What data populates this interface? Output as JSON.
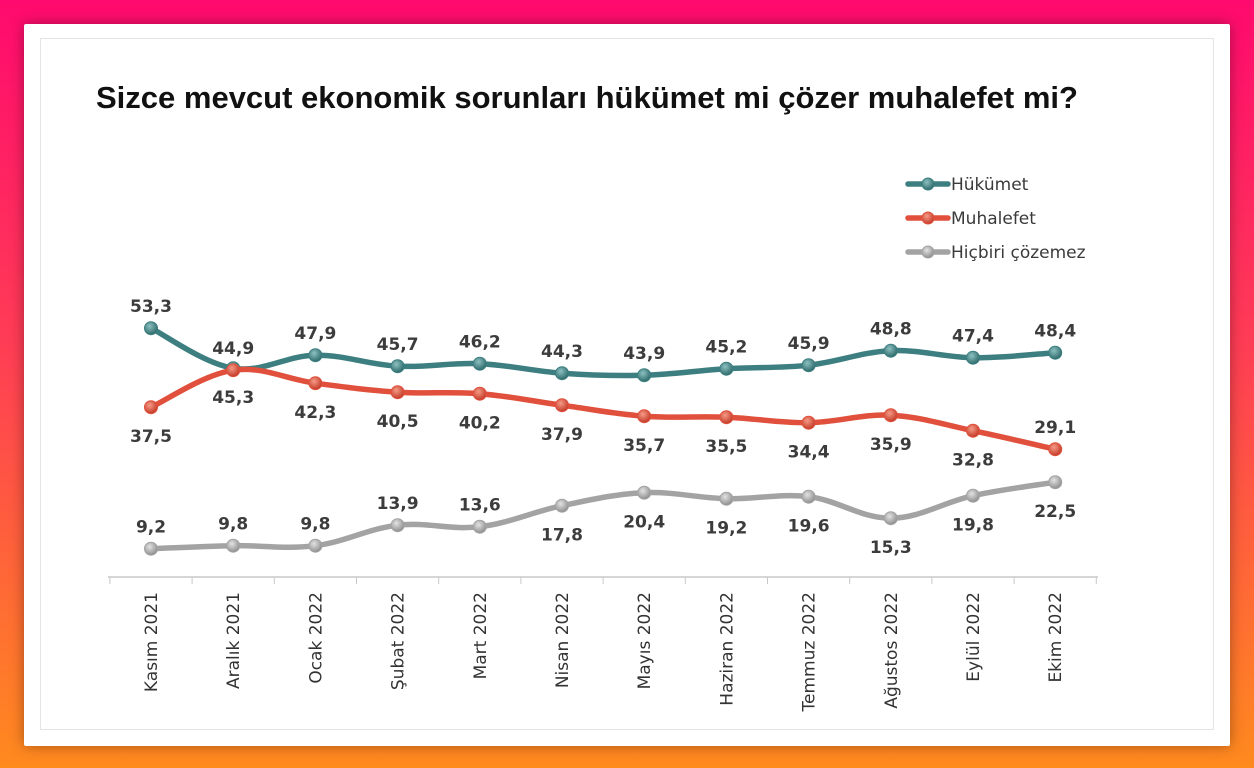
{
  "chart_data": {
    "type": "line",
    "title": "Sizce mevcut ekonomik sorunları hükümet mi çözer muhalefet mi?",
    "categories": [
      "Kasım 2021",
      "Aralık 2021",
      "Ocak 2022",
      "Şubat 2022",
      "Mart 2022",
      "Nisan 2022",
      "Mayıs 2022",
      "Haziran 2022",
      "Temmuz 2022",
      "Ağustos 2022",
      "Eylül 2022",
      "Ekim 2022"
    ],
    "series": [
      {
        "name": "Hükümet",
        "color": "#3d7f81",
        "values": [
          53.3,
          45.3,
          47.9,
          45.7,
          46.2,
          44.3,
          43.9,
          45.2,
          45.9,
          48.8,
          47.4,
          48.4
        ],
        "labels": [
          "53,3",
          "45,3",
          "47,9",
          "45,7",
          "46,2",
          "44,3",
          "43,9",
          "45,2",
          "45,9",
          "48,8",
          "47,4",
          "48,4"
        ],
        "label_pos": [
          "above",
          "below",
          "above",
          "above",
          "above",
          "above",
          "above",
          "above",
          "above",
          "above",
          "above",
          "above"
        ]
      },
      {
        "name": "Muhalefet",
        "color": "#e0503c",
        "values": [
          37.5,
          44.9,
          42.3,
          40.5,
          40.2,
          37.9,
          35.7,
          35.5,
          34.4,
          35.9,
          32.8,
          29.1
        ],
        "labels": [
          "37,5",
          "44,9",
          "42,3",
          "40,5",
          "40,2",
          "37,9",
          "35,7",
          "35,5",
          "34,4",
          "35,9",
          "32,8",
          "29,1"
        ],
        "label_pos": [
          "below",
          "above",
          "below",
          "below",
          "below",
          "below",
          "below",
          "below",
          "below",
          "below",
          "below",
          "above"
        ]
      },
      {
        "name": "Hiçbiri çözemez",
        "color": "#a3a3a3",
        "values": [
          9.2,
          9.8,
          9.8,
          13.9,
          13.6,
          17.8,
          20.4,
          19.2,
          19.6,
          15.3,
          19.8,
          22.5
        ],
        "labels": [
          "9,2",
          "9,8",
          "9,8",
          "13,9",
          "13,6",
          "17,8",
          "20,4",
          "19,2",
          "19,6",
          "15,3",
          "19,8",
          "22,5"
        ],
        "label_pos": [
          "above",
          "above",
          "above",
          "above",
          "above",
          "below",
          "below",
          "below",
          "below",
          "below",
          "below",
          "below"
        ]
      }
    ],
    "legend_position": "top-right",
    "grid": false,
    "xlabel": "",
    "ylabel": ""
  }
}
